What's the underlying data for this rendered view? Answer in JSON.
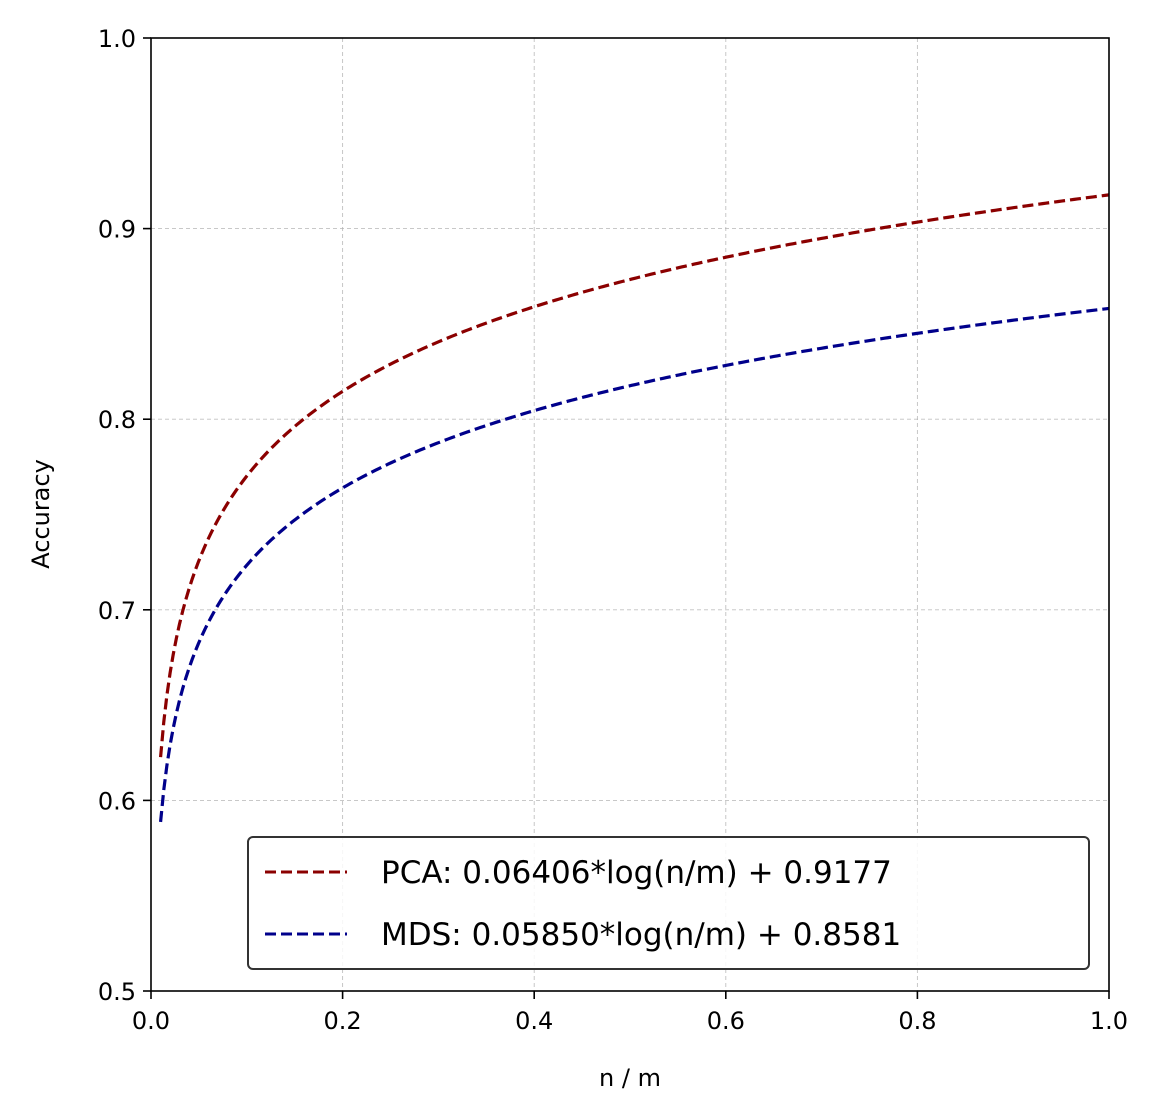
{
  "chart_data": {
    "type": "line",
    "title": "",
    "xlabel": "n / m",
    "ylabel": "Accuracy",
    "xlim": [
      0.0,
      1.0
    ],
    "ylim": [
      0.5,
      1.0
    ],
    "x_ticks": [
      "0.0",
      "0.2",
      "0.4",
      "0.6",
      "0.8",
      "1.0"
    ],
    "y_ticks": [
      "0.5",
      "0.6",
      "0.7",
      "0.8",
      "0.9",
      "1.0"
    ],
    "grid": true,
    "legend_position": "lower-right",
    "x_range": [
      0.01,
      1.0
    ],
    "series": [
      {
        "name": "PCA: 0.06406*log(n/m) + 0.9177",
        "coef": 0.06406,
        "intercept": 0.9177,
        "color": "#8b0000",
        "line_style": "dashed"
      },
      {
        "name": "MDS: 0.05850*log(n/m) + 0.8581",
        "coef": 0.0585,
        "intercept": 0.8581,
        "color": "#00008b",
        "line_style": "dashed"
      }
    ]
  }
}
